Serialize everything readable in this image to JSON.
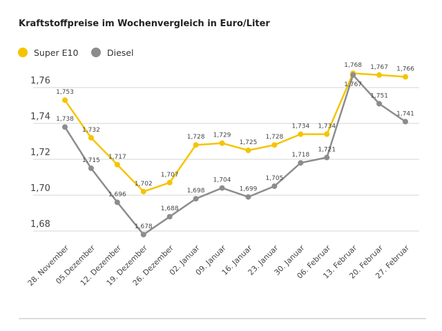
{
  "chart_data": {
    "type": "line",
    "title": "Kraftstoffpreise im Wochenvergleich in Euro/Liter",
    "categories": [
      "28. November",
      "05.Dezember",
      "12. Dezember",
      "19. Dezember",
      "26. Dezember",
      "02. Januar",
      "09. Januar",
      "16. Januar",
      "23. Januar",
      "30. Januar",
      "06. Februar",
      "13. Februar",
      "20. Februar",
      "27. Februar"
    ],
    "series": [
      {
        "name": "Super E10",
        "color": "#f5c400",
        "values": [
          1.753,
          1.732,
          1.717,
          1.702,
          1.707,
          1.728,
          1.729,
          1.725,
          1.728,
          1.734,
          1.734,
          1.768,
          1.767,
          1.766
        ],
        "labels": [
          "1,753",
          "1,732",
          "1,717",
          "1,702",
          "1,707",
          "1,728",
          "1,729",
          "1,725",
          "1,728",
          "1,734",
          "1,734",
          "1,768",
          "1,767",
          "1,766"
        ]
      },
      {
        "name": "Diesel",
        "color": "#8c8c8c",
        "values": [
          1.738,
          1.715,
          1.696,
          1.678,
          1.688,
          1.698,
          1.704,
          1.699,
          1.705,
          1.718,
          1.721,
          1.767,
          1.751,
          1.741
        ],
        "labels": [
          "1,738",
          "1,715",
          "1,696",
          "1,678",
          "1,688",
          "1,698",
          "1,704",
          "1,699",
          "1,705",
          "1,718",
          "1,721",
          "1,767",
          "1,751",
          "1,741"
        ]
      }
    ],
    "yticks": [
      1.68,
      1.7,
      1.72,
      1.74,
      1.76
    ],
    "ytick_labels": [
      "1,68",
      "1,70",
      "1,72",
      "1,74",
      "1,76"
    ],
    "ylim": [
      1.68,
      1.76
    ],
    "grid": true,
    "legend": "top-left",
    "xlabel": "",
    "ylabel": ""
  }
}
